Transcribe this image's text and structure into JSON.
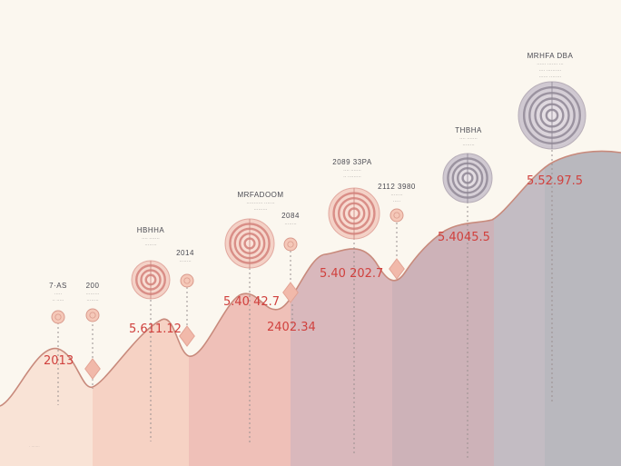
{
  "chart_data": {
    "type": "area",
    "title": "",
    "xlabel": "",
    "ylabel": "",
    "grid": false,
    "legend": "none",
    "colors": {
      "background": "#fbf7ef",
      "band_fills": [
        "#f9e3d6",
        "#f6d2c4",
        "#efc0b8",
        "#d9b8bc",
        "#cdb2b8",
        "#c3bcc3",
        "#b9b8be"
      ],
      "curve": "#c88a7c",
      "label_red": "#d0413e",
      "marker_fill": "#f5c8b8",
      "diamond_fill": "#f1b9aa"
    },
    "number_labels": [
      "2013",
      "5.611.12",
      "5.40 42.7",
      "2402.34",
      "5.40 202.7",
      "5.4045.5",
      "5.52.97.5"
    ],
    "headers": [
      {
        "text": "7·AS",
        "subtext": [
          "·····",
          "·· ·····"
        ]
      },
      {
        "text": "200",
        "subtext": [
          "·········",
          "········"
        ]
      },
      {
        "text": "HBHHA",
        "subtext": [
          "···· ·······",
          "········"
        ]
      },
      {
        "text": "2014",
        "subtext": [
          "········"
        ]
      },
      {
        "text": "MRFADOOM",
        "subtext": [
          "··········· ·······",
          "·········"
        ]
      },
      {
        "text": "2084",
        "subtext": [
          "········"
        ]
      },
      {
        "text": "2089 33PA",
        "subtext": [
          "···· ·······",
          "·· ·········"
        ]
      },
      {
        "text": "2112 3980",
        "subtext": [
          "········",
          "·····"
        ]
      },
      {
        "text": "THBHA",
        "subtext": [
          "···· ·······",
          "········"
        ]
      },
      {
        "text": "MRHFA DBA",
        "subtext": [
          "······ ······· ···",
          "···· ··········",
          "······ ········"
        ]
      }
    ]
  }
}
